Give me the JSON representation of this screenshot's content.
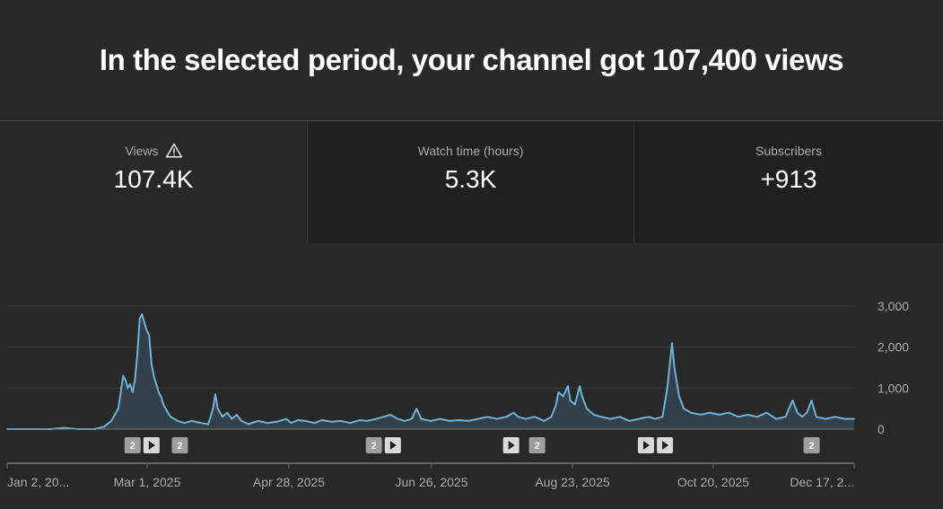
{
  "headline": "In the selected period, your channel got 107,400 views",
  "tabs": [
    {
      "label": "Views",
      "value": "107.4K",
      "icon": "warning-icon"
    },
    {
      "label": "Watch time (hours)",
      "value": "5.3K"
    },
    {
      "label": "Subscribers",
      "value": "+913"
    }
  ],
  "colors": {
    "background": "#282828",
    "line": "#6fb2d9",
    "fill": "#34424c",
    "grid": "#3e3e3e",
    "marker": "#9e9e9e"
  },
  "chart_data": {
    "type": "area",
    "title": "",
    "xlabel": "",
    "ylabel": "",
    "ylim": [
      0,
      3000
    ],
    "yticks": [
      {
        "value": 0,
        "label": "0"
      },
      {
        "value": 1000,
        "label": "1,000"
      },
      {
        "value": 2000,
        "label": "2,000"
      },
      {
        "value": 3000,
        "label": "3,000"
      }
    ],
    "xticks": [
      "Jan 2, 20...",
      "Mar 1, 2025",
      "Apr 28, 2025",
      "Jun 26, 2025",
      "Aug 23, 2025",
      "Oct 20, 2025",
      "Dec 17, 2..."
    ],
    "grid": true,
    "series": [
      {
        "name": "",
        "points": [
          [
            "2025-01-02",
            0
          ],
          [
            "2025-01-20",
            0
          ],
          [
            "2025-01-26",
            30
          ],
          [
            "2025-02-01",
            0
          ],
          [
            "2025-02-08",
            0
          ],
          [
            "2025-02-12",
            60
          ],
          [
            "2025-02-15",
            200
          ],
          [
            "2025-02-17",
            400
          ],
          [
            "2025-02-18",
            500
          ],
          [
            "2025-02-19",
            900
          ],
          [
            "2025-02-20",
            1300
          ],
          [
            "2025-02-21",
            1200
          ],
          [
            "2025-02-22",
            1000
          ],
          [
            "2025-02-23",
            1100
          ],
          [
            "2025-02-24",
            900
          ],
          [
            "2025-02-25",
            1200
          ],
          [
            "2025-02-26",
            1800
          ],
          [
            "2025-02-27",
            2700
          ],
          [
            "2025-02-28",
            2800
          ],
          [
            "2025-03-01",
            2600
          ],
          [
            "2025-03-02",
            2400
          ],
          [
            "2025-03-03",
            2300
          ],
          [
            "2025-03-04",
            1600
          ],
          [
            "2025-03-05",
            1300
          ],
          [
            "2025-03-06",
            1100
          ],
          [
            "2025-03-07",
            900
          ],
          [
            "2025-03-08",
            800
          ],
          [
            "2025-03-09",
            600
          ],
          [
            "2025-03-10",
            500
          ],
          [
            "2025-03-12",
            300
          ],
          [
            "2025-03-15",
            200
          ],
          [
            "2025-03-18",
            150
          ],
          [
            "2025-03-21",
            200
          ],
          [
            "2025-03-25",
            150
          ],
          [
            "2025-03-28",
            120
          ],
          [
            "2025-03-30",
            500
          ],
          [
            "2025-03-31",
            850
          ],
          [
            "2025-04-01",
            500
          ],
          [
            "2025-04-03",
            300
          ],
          [
            "2025-04-05",
            400
          ],
          [
            "2025-04-07",
            250
          ],
          [
            "2025-04-09",
            350
          ],
          [
            "2025-04-11",
            200
          ],
          [
            "2025-04-14",
            120
          ],
          [
            "2025-04-18",
            200
          ],
          [
            "2025-04-22",
            150
          ],
          [
            "2025-04-26",
            180
          ],
          [
            "2025-04-30",
            250
          ],
          [
            "2025-05-02",
            150
          ],
          [
            "2025-05-05",
            220
          ],
          [
            "2025-05-08",
            200
          ],
          [
            "2025-05-12",
            150
          ],
          [
            "2025-05-15",
            220
          ],
          [
            "2025-05-19",
            180
          ],
          [
            "2025-05-23",
            200
          ],
          [
            "2025-05-27",
            150
          ],
          [
            "2025-05-31",
            220
          ],
          [
            "2025-06-03",
            200
          ],
          [
            "2025-06-07",
            250
          ],
          [
            "2025-06-10",
            300
          ],
          [
            "2025-06-13",
            350
          ],
          [
            "2025-06-16",
            250
          ],
          [
            "2025-06-19",
            200
          ],
          [
            "2025-06-22",
            250
          ],
          [
            "2025-06-24",
            500
          ],
          [
            "2025-06-26",
            250
          ],
          [
            "2025-06-30",
            200
          ],
          [
            "2025-07-04",
            250
          ],
          [
            "2025-07-08",
            200
          ],
          [
            "2025-07-12",
            220
          ],
          [
            "2025-07-16",
            200
          ],
          [
            "2025-07-20",
            250
          ],
          [
            "2025-07-24",
            300
          ],
          [
            "2025-07-28",
            250
          ],
          [
            "2025-08-01",
            300
          ],
          [
            "2025-08-04",
            400
          ],
          [
            "2025-08-06",
            300
          ],
          [
            "2025-08-09",
            250
          ],
          [
            "2025-08-13",
            300
          ],
          [
            "2025-08-17",
            200
          ],
          [
            "2025-08-20",
            300
          ],
          [
            "2025-08-22",
            600
          ],
          [
            "2025-08-23",
            900
          ],
          [
            "2025-08-25",
            800
          ],
          [
            "2025-08-27",
            1050
          ],
          [
            "2025-08-28",
            700
          ],
          [
            "2025-08-30",
            600
          ],
          [
            "2025-09-01",
            1050
          ],
          [
            "2025-09-02",
            800
          ],
          [
            "2025-09-04",
            500
          ],
          [
            "2025-09-07",
            350
          ],
          [
            "2025-09-10",
            300
          ],
          [
            "2025-09-14",
            250
          ],
          [
            "2025-09-18",
            300
          ],
          [
            "2025-09-22",
            200
          ],
          [
            "2025-09-26",
            250
          ],
          [
            "2025-09-30",
            300
          ],
          [
            "2025-10-03",
            250
          ],
          [
            "2025-10-06",
            300
          ],
          [
            "2025-10-08",
            1000
          ],
          [
            "2025-10-10",
            2100
          ],
          [
            "2025-10-11",
            1500
          ],
          [
            "2025-10-13",
            800
          ],
          [
            "2025-10-15",
            500
          ],
          [
            "2025-10-18",
            400
          ],
          [
            "2025-10-22",
            350
          ],
          [
            "2025-10-26",
            400
          ],
          [
            "2025-10-30",
            350
          ],
          [
            "2025-11-03",
            400
          ],
          [
            "2025-11-07",
            300
          ],
          [
            "2025-11-11",
            350
          ],
          [
            "2025-11-15",
            300
          ],
          [
            "2025-11-19",
            400
          ],
          [
            "2025-11-23",
            250
          ],
          [
            "2025-11-27",
            300
          ],
          [
            "2025-11-30",
            700
          ],
          [
            "2025-12-02",
            400
          ],
          [
            "2025-12-04",
            300
          ],
          [
            "2025-12-06",
            400
          ],
          [
            "2025-12-08",
            700
          ],
          [
            "2025-12-10",
            300
          ],
          [
            "2025-12-14",
            250
          ],
          [
            "2025-12-18",
            300
          ],
          [
            "2025-12-22",
            250
          ],
          [
            "2025-12-26",
            250
          ]
        ]
      }
    ],
    "markers": [
      {
        "date": "2025-02-24",
        "kind": "count",
        "label": "2"
      },
      {
        "date": "2025-03-04",
        "kind": "video"
      },
      {
        "date": "2025-03-16",
        "kind": "count",
        "label": "2"
      },
      {
        "date": "2025-06-06",
        "kind": "count",
        "label": "2"
      },
      {
        "date": "2025-06-14",
        "kind": "video"
      },
      {
        "date": "2025-08-03",
        "kind": "video"
      },
      {
        "date": "2025-08-14",
        "kind": "count",
        "label": "2"
      },
      {
        "date": "2025-09-29",
        "kind": "video"
      },
      {
        "date": "2025-10-07",
        "kind": "video"
      },
      {
        "date": "2025-12-08",
        "kind": "count",
        "label": "2"
      }
    ]
  }
}
